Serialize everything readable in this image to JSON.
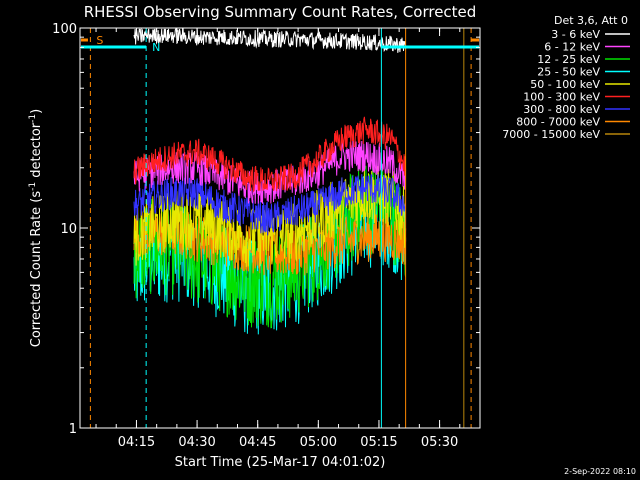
{
  "chart_data": {
    "type": "line",
    "title": "RHESSI Observing Summary Count Rates, Corrected",
    "xlabel": "Start Time (25-Mar-17 04:01:02)",
    "ylabel_main": "Corrected Count Rate (s",
    "ylabel_sup1": "-1",
    "ylabel_mid": " detector",
    "ylabel_sup2": "-1",
    "ylabel_end": ")",
    "yscale": "log",
    "ylim": [
      1,
      100
    ],
    "xlim": [
      4.0172,
      5.6667
    ],
    "y_ticks": [
      {
        "v": 1,
        "label": "1"
      },
      {
        "v": 10,
        "label": "10"
      },
      {
        "v": 100,
        "label": "100"
      }
    ],
    "x_ticks": [
      {
        "v": 4.25,
        "label": "04:15"
      },
      {
        "v": 4.5,
        "label": "04:30"
      },
      {
        "v": 4.75,
        "label": "04:45"
      },
      {
        "v": 5.0,
        "label": "05:00"
      },
      {
        "v": 5.25,
        "label": "05:15"
      },
      {
        "v": 5.5,
        "label": "05:30"
      }
    ],
    "legend_title": "Det 3,6, Att 0",
    "legend_placement": "outside-right",
    "data_start": 4.24,
    "data_end": 5.36,
    "series": [
      {
        "name": "3 - 6 keV",
        "color": "#ffffff",
        "base": 92,
        "x": [
          4.24,
          4.3,
          4.4,
          4.5,
          4.6,
          4.7,
          4.8,
          4.9,
          5.0,
          5.1,
          5.2,
          5.3,
          5.36
        ],
        "y": [
          90,
          92,
          92,
          90,
          90,
          89,
          88,
          88,
          87,
          86,
          85,
          83,
          82
        ]
      },
      {
        "name": "6 - 12 keV",
        "color": "#ff44ff",
        "x": [
          4.24,
          4.3,
          4.4,
          4.5,
          4.6,
          4.7,
          4.8,
          4.9,
          5.0,
          5.1,
          5.2,
          5.3,
          5.36
        ],
        "y": [
          18,
          19,
          20,
          20,
          18,
          16,
          16,
          17,
          19,
          23,
          23,
          21,
          17
        ]
      },
      {
        "name": "12 - 25 keV",
        "color": "#00e000",
        "x": [
          4.24,
          4.3,
          4.4,
          4.5,
          4.6,
          4.7,
          4.8,
          4.9,
          5.0,
          5.1,
          5.2,
          5.3,
          5.36
        ],
        "y": [
          7.5,
          8,
          8,
          7,
          6.5,
          5.5,
          5.5,
          6,
          7.5,
          10,
          13,
          12,
          9
        ]
      },
      {
        "name": "25 - 50 keV",
        "color": "#00ffff",
        "x": [
          4.24,
          4.3,
          4.4,
          4.5,
          4.6,
          4.7,
          4.8,
          4.9,
          5.0,
          5.1,
          5.2,
          5.3,
          5.36
        ],
        "y": [
          6,
          7,
          7.5,
          7,
          6,
          5,
          5,
          5.5,
          7,
          9,
          11,
          11,
          8
        ]
      },
      {
        "name": "50 - 100 keV",
        "color": "#e8e800",
        "x": [
          4.24,
          4.3,
          4.4,
          4.5,
          4.6,
          4.7,
          4.8,
          4.9,
          5.0,
          5.1,
          5.2,
          5.3,
          5.36
        ],
        "y": [
          9,
          10,
          11,
          11,
          10,
          9,
          9,
          9.5,
          11,
          13,
          15,
          14,
          11
        ]
      },
      {
        "name": "100 - 300 keV",
        "color": "#ff2020",
        "x": [
          4.24,
          4.3,
          4.4,
          4.5,
          4.6,
          4.7,
          4.8,
          4.9,
          5.0,
          5.1,
          5.2,
          5.3,
          5.36
        ],
        "y": [
          19,
          21,
          23,
          24,
          21,
          18,
          17,
          18,
          22,
          28,
          31,
          28,
          20
        ]
      },
      {
        "name": "300 - 800 keV",
        "color": "#3333ff",
        "x": [
          4.24,
          4.3,
          4.4,
          4.5,
          4.6,
          4.7,
          4.8,
          4.9,
          5.0,
          5.1,
          5.2,
          5.3,
          5.36
        ],
        "y": [
          13,
          14,
          15,
          15,
          13,
          12,
          11,
          12,
          13,
          15,
          16,
          15,
          13
        ]
      },
      {
        "name": "800 - 7000 keV",
        "color": "#ff8800",
        "x": [
          4.24,
          4.3,
          4.4,
          4.5,
          4.6,
          4.7,
          4.8,
          4.9,
          5.0,
          5.1,
          5.2,
          5.3,
          5.36
        ],
        "y": [
          9,
          9.5,
          9.5,
          9,
          8.5,
          8,
          7.5,
          7.5,
          8,
          8.5,
          9,
          9,
          8.5
        ]
      },
      {
        "name": "7000 - 15000 keV",
        "color": "#b8860b",
        "x": [],
        "y": []
      }
    ],
    "annotations": {
      "s_label": "S",
      "n_label": "N",
      "s_bar_color": "#ff8800",
      "n_bar_color": "#00ffff"
    },
    "footer": "2-Sep-2022 08:10"
  }
}
